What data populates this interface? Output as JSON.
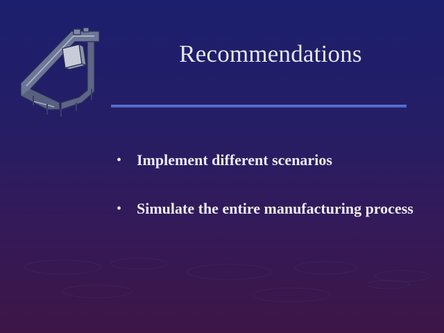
{
  "slide": {
    "title": "Recommendations",
    "bullets": [
      {
        "marker": "•",
        "text": "Implement different scenarios"
      },
      {
        "marker": "•",
        "text": "Simulate the entire manufacturing process"
      }
    ]
  },
  "colors": {
    "background_top": "#1c1f6e",
    "background_bottom": "#3d1646",
    "title_text": "#e6e6ec",
    "rule": "#4f66c4",
    "body_text": "#ececf2"
  },
  "icons": {
    "logo": "conveyor-machine-icon"
  }
}
